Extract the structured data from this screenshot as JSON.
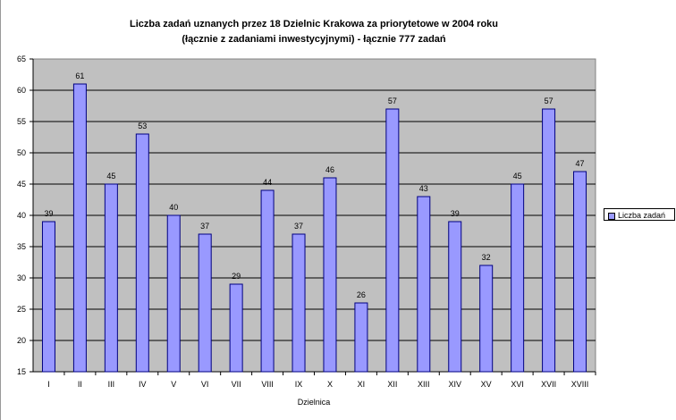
{
  "chart_data": {
    "type": "bar",
    "title": "Liczba zadań uznanych przez 18 Dzielnic Krakowa za priorytetowe w 2004 roku",
    "subtitle": "(łącznie z zadaniami inwestycyjnymi) - łącznie 777 zadań",
    "xlabel": "Dzielnica",
    "ylabel": "",
    "categories": [
      "I",
      "II",
      "III",
      "IV",
      "V",
      "VI",
      "VII",
      "VIII",
      "IX",
      "X",
      "XI",
      "XII",
      "XIII",
      "XIV",
      "XV",
      "XVI",
      "XVII",
      "XVIII"
    ],
    "series": [
      {
        "name": "Liczba zadań",
        "values": [
          39,
          61,
          45,
          53,
          40,
          37,
          29,
          44,
          37,
          46,
          26,
          57,
          43,
          39,
          32,
          45,
          57,
          47
        ]
      }
    ],
    "ylim": [
      15,
      65
    ],
    "yticks": [
      15,
      20,
      25,
      30,
      35,
      40,
      45,
      50,
      55,
      60,
      65
    ],
    "grid": true,
    "legend": "right",
    "colors": {
      "bar": "#9999ff",
      "bar_border": "#000080",
      "plot_bg": "#c0c0c0"
    }
  }
}
